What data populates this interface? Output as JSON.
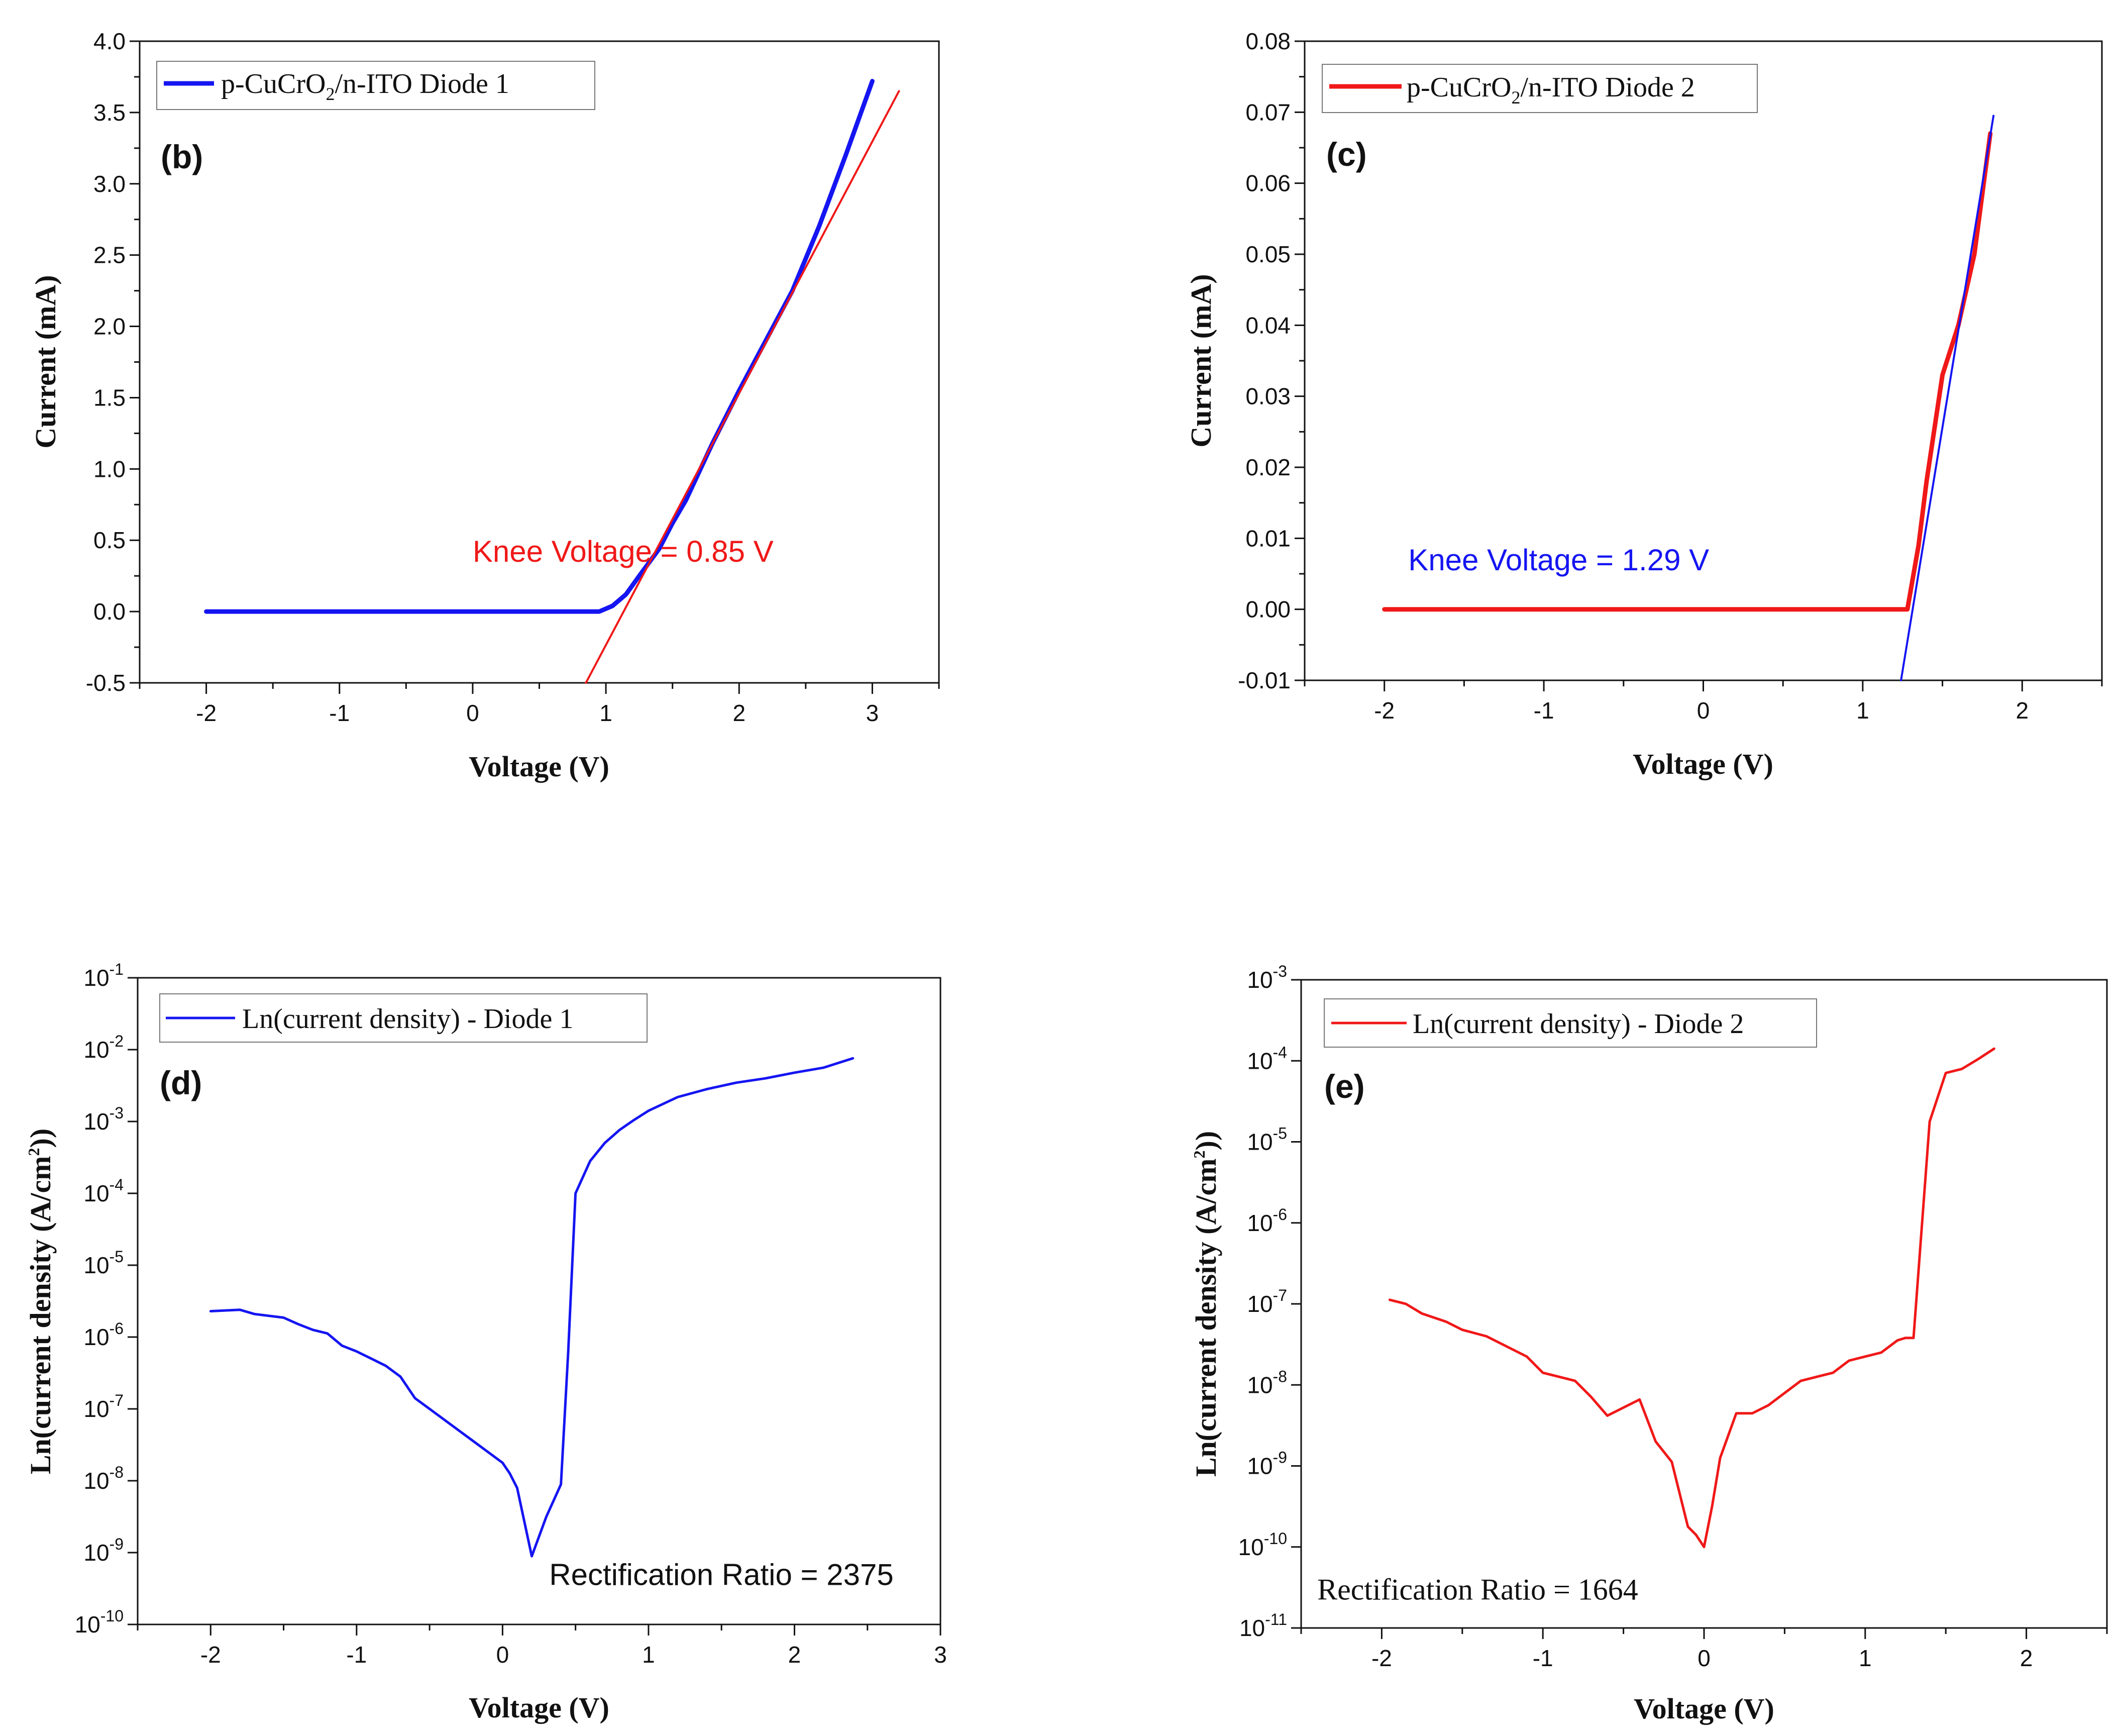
{
  "colors": {
    "blue": "#1515f2",
    "red": "#f01818",
    "axis": "#111111"
  },
  "chart_data": [
    {
      "id": "b",
      "type": "line",
      "panel_label": "(b)",
      "title": "",
      "xlabel": "Voltage (V)",
      "ylabel": "Current (mA)",
      "xlim": [
        -2.5,
        3.5
      ],
      "ylim": [
        -0.5,
        4.0
      ],
      "yscale": "linear",
      "xticks": [
        -2,
        -1,
        0,
        1,
        2,
        3
      ],
      "xtick_labels": [
        "-2",
        "-1",
        "0",
        "1",
        "2",
        "3"
      ],
      "yticks": [
        -0.5,
        0.0,
        0.5,
        1.0,
        1.5,
        2.0,
        2.5,
        3.0,
        3.5,
        4.0
      ],
      "ytick_labels": [
        "-0.5",
        "0.0",
        "0.5",
        "1.0",
        "1.5",
        "2.0",
        "2.5",
        "3.0",
        "3.5",
        "4.0"
      ],
      "legend": {
        "placement": "top-left",
        "text": "p-CuCrO",
        "sub": "2",
        "text_after": "/n-ITO Diode 1"
      },
      "annotation": {
        "text": "Knee Voltage = 0.85 V",
        "font": "sans",
        "color": "red",
        "at": [
          0.0,
          0.35
        ]
      },
      "series": [
        {
          "name": "p-CuCrO2/n-ITO Diode 1",
          "color": "blue",
          "width": 9,
          "x": [
            -2,
            -1,
            0,
            0.5,
            0.95,
            1.05,
            1.15,
            1.25,
            1.4,
            1.5,
            1.6,
            1.8,
            2.0,
            2.2,
            2.4,
            2.6,
            2.8,
            3.0
          ],
          "y": [
            0,
            0,
            0,
            0,
            0.0,
            0.04,
            0.12,
            0.25,
            0.44,
            0.62,
            0.78,
            1.18,
            1.55,
            1.9,
            2.25,
            2.7,
            3.2,
            3.72
          ]
        },
        {
          "name": "fit",
          "color": "red",
          "width": 4,
          "x": [
            0.85,
            3.2
          ],
          "y": [
            -0.5,
            3.65
          ]
        }
      ]
    },
    {
      "id": "c",
      "type": "line",
      "panel_label": "(c)",
      "title": "",
      "xlabel": "Voltage (V)",
      "ylabel": "Current (mA)",
      "xlim": [
        -2.5,
        2.5
      ],
      "ylim": [
        -0.01,
        0.08
      ],
      "yscale": "linear",
      "xticks": [
        -2,
        -1,
        0,
        1,
        2
      ],
      "xtick_labels": [
        "-2",
        "-1",
        "0",
        "1",
        "2"
      ],
      "yticks": [
        -0.01,
        0.0,
        0.01,
        0.02,
        0.03,
        0.04,
        0.05,
        0.06,
        0.07,
        0.08
      ],
      "ytick_labels": [
        "-0.01",
        "0.00",
        "0.01",
        "0.02",
        "0.03",
        "0.04",
        "0.05",
        "0.06",
        "0.07",
        "0.08"
      ],
      "legend": {
        "placement": "top-left",
        "text": "p-CuCrO",
        "sub": "2",
        "text_after": "/n-ITO Diode 2"
      },
      "annotation": {
        "text": "Knee Voltage = 1.29 V",
        "font": "sans",
        "color": "blue",
        "at": [
          -1.85,
          0.0055
        ]
      },
      "series": [
        {
          "name": "p-CuCrO2/n-ITO Diode 2",
          "color": "red",
          "width": 9,
          "x": [
            -2,
            -1,
            0,
            1,
            1.28,
            1.35,
            1.4,
            1.5,
            1.6,
            1.7,
            1.8
          ],
          "y": [
            0,
            0,
            0,
            0,
            0.0,
            0.009,
            0.018,
            0.033,
            0.04,
            0.05,
            0.067
          ]
        },
        {
          "name": "fit",
          "color": "blue",
          "width": 4,
          "x": [
            1.24,
            1.82
          ],
          "y": [
            -0.01,
            0.0695
          ]
        }
      ]
    },
    {
      "id": "d",
      "type": "line",
      "panel_label": "(d)",
      "title": "",
      "xlabel": "Voltage (V)",
      "ylabel": "Ln(current density (A/cm",
      "ylabel_sup": "2",
      "ylabel_end": "))",
      "xlim": [
        -2.5,
        3.0
      ],
      "ylim": [
        -10,
        -1
      ],
      "yscale": "log",
      "xticks": [
        -2,
        -1,
        0,
        1,
        2,
        3
      ],
      "xtick_labels": [
        "-2",
        "-1",
        "0",
        "1",
        "2",
        "3"
      ],
      "yticks": [
        -10,
        -9,
        -8,
        -7,
        -6,
        -5,
        -4,
        -3,
        -2,
        -1
      ],
      "ytick_exponents": [
        "-10",
        "-9",
        "-8",
        "-7",
        "-6",
        "-5",
        "-4",
        "-3",
        "-2",
        "-1"
      ],
      "ytick_base": "10",
      "legend": {
        "placement": "top-left",
        "text": "Ln(current density) - Diode 1"
      },
      "annotation": {
        "text": "Rectification Ratio = 2375",
        "font": "sans",
        "color": "axis",
        "at": [
          0.32,
          -9.45
        ]
      },
      "series": [
        {
          "name": "Ln(current density) - Diode 1",
          "color": "blue",
          "width": 5,
          "x": [
            -2.0,
            -1.9,
            -1.8,
            -1.7,
            -1.5,
            -1.4,
            -1.3,
            -1.2,
            -1.1,
            -1.0,
            -0.9,
            -0.8,
            -0.7,
            -0.6,
            -0.5,
            -0.4,
            -0.3,
            -0.2,
            -0.1,
            0.0,
            0.05,
            0.1,
            0.2,
            0.3,
            0.4,
            0.45,
            0.5,
            0.6,
            0.7,
            0.8,
            0.9,
            1.0,
            1.2,
            1.4,
            1.6,
            1.8,
            2.0,
            2.2,
            2.4
          ],
          "y": [
            -5.64,
            -5.63,
            -5.62,
            -5.68,
            -5.73,
            -5.82,
            -5.9,
            -5.95,
            -6.12,
            -6.2,
            -6.3,
            -6.4,
            -6.55,
            -6.85,
            -7.0,
            -7.15,
            -7.3,
            -7.45,
            -7.6,
            -7.75,
            -7.9,
            -8.1,
            -9.05,
            -8.5,
            -8.05,
            -6.2,
            -4.0,
            -3.55,
            -3.3,
            -3.12,
            -2.98,
            -2.85,
            -2.66,
            -2.55,
            -2.46,
            -2.4,
            -2.32,
            -2.25,
            -2.12
          ]
        }
      ]
    },
    {
      "id": "e",
      "type": "line",
      "panel_label": "(e)",
      "title": "",
      "xlabel": "Voltage (V)",
      "ylabel": "Ln(current density (A/cm",
      "ylabel_sup": "2",
      "ylabel_end": "))",
      "xlim": [
        -2.5,
        2.5
      ],
      "ylim": [
        -11,
        -3
      ],
      "yscale": "log",
      "xticks": [
        -2,
        -1,
        0,
        1,
        2
      ],
      "xtick_labels": [
        "-2",
        "-1",
        "0",
        "1",
        "2"
      ],
      "yticks": [
        -11,
        -10,
        -9,
        -8,
        -7,
        -6,
        -5,
        -4,
        -3
      ],
      "ytick_exponents": [
        "-11",
        "-10",
        "-9",
        "-8",
        "-7",
        "-6",
        "-5",
        "-4",
        "-3"
      ],
      "ytick_base": "10",
      "legend": {
        "placement": "top-left",
        "text": "Ln(current density) - Diode 2"
      },
      "annotation": {
        "text": "Rectification Ratio = 1664",
        "font": "serif",
        "color": "axis",
        "at": [
          -2.4,
          -10.65
        ]
      },
      "series": [
        {
          "name": "Ln(current density) - Diode 2",
          "color": "red",
          "width": 5,
          "x": [
            -1.95,
            -1.85,
            -1.75,
            -1.6,
            -1.5,
            -1.35,
            -1.2,
            -1.1,
            -1.0,
            -0.9,
            -0.8,
            -0.7,
            -0.6,
            -0.5,
            -0.4,
            -0.3,
            -0.2,
            -0.1,
            -0.05,
            0.0,
            0.05,
            0.1,
            0.2,
            0.3,
            0.4,
            0.5,
            0.6,
            0.7,
            0.8,
            0.9,
            1.0,
            1.1,
            1.2,
            1.25,
            1.3,
            1.4,
            1.5,
            1.6,
            1.7,
            1.8
          ],
          "y": [
            -6.95,
            -7.0,
            -7.12,
            -7.22,
            -7.32,
            -7.4,
            -7.55,
            -7.65,
            -7.85,
            -7.9,
            -7.95,
            -8.15,
            -8.38,
            -8.28,
            -8.18,
            -8.7,
            -8.95,
            -9.75,
            -9.85,
            -10.0,
            -9.5,
            -8.9,
            -8.35,
            -8.35,
            -8.25,
            -8.1,
            -7.95,
            -7.9,
            -7.85,
            -7.7,
            -7.65,
            -7.6,
            -7.45,
            -7.42,
            -7.42,
            -4.75,
            -4.15,
            -4.1,
            -3.98,
            -3.85
          ]
        }
      ]
    }
  ]
}
